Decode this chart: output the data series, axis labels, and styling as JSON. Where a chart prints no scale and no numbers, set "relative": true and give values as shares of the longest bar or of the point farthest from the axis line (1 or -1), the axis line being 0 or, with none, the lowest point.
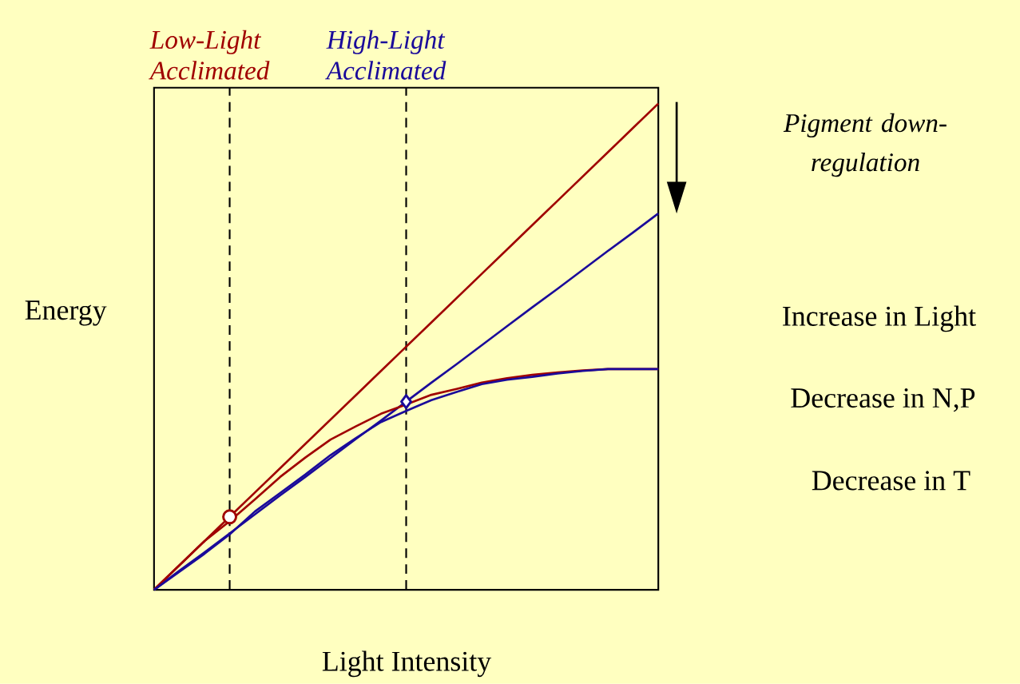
{
  "chart_data": {
    "type": "line",
    "relative": true,
    "xlabel": "Light Intensity",
    "ylabel": "Energy",
    "tick_labels": false,
    "marker": "none",
    "line_style": "solid",
    "categories": [
      null,
      null,
      null,
      null,
      null,
      null,
      null,
      null,
      null,
      null,
      null,
      null,
      null,
      null,
      null,
      null,
      null,
      null,
      null,
      null,
      null
    ],
    "series": [
      {
        "color": "#a00000",
        "values": [
          0,
          0.05,
          0.1,
          0.15,
          0.2,
          0.25,
          0.3,
          0.35,
          0.4,
          0.45,
          0.5,
          0.55,
          0.6,
          0.65,
          0.7,
          0.75,
          0.8,
          0.85,
          0.9,
          0.95,
          1
        ]
      },
      {
        "color": "#1a0a9a",
        "values": [
          0,
          0.039,
          0.077,
          0.116,
          0.155,
          0.194,
          0.232,
          0.271,
          0.31,
          0.348,
          0.387,
          0.426,
          0.464,
          0.503,
          0.542,
          0.581,
          0.619,
          0.658,
          0.697,
          0.735,
          0.774
        ]
      },
      {
        "color": "#a00000",
        "values": [
          0,
          0.05,
          0.1,
          0.141,
          0.186,
          0.232,
          0.272,
          0.309,
          0.336,
          0.362,
          0.381,
          0.401,
          0.413,
          0.426,
          0.435,
          0.442,
          0.447,
          0.451,
          0.454,
          0.454,
          0.454
        ]
      },
      {
        "color": "#1a0a9a",
        "values": [
          0,
          0.037,
          0.074,
          0.114,
          0.161,
          0.199,
          0.237,
          0.277,
          0.312,
          0.345,
          0.368,
          0.39,
          0.407,
          0.423,
          0.432,
          0.438,
          0.445,
          0.45,
          0.454,
          0.454,
          0.454
        ]
      },
      {
        "name": "Low-Light Acclimated",
        "color": "#a00000",
        "marker": "circle",
        "values": [
          null,
          null,
          null,
          0.15,
          null,
          null,
          null,
          null,
          null,
          null,
          null,
          null,
          null,
          null,
          null,
          null,
          null,
          null,
          null,
          null,
          null
        ]
      },
      {
        "name": "High-Light Acclimated",
        "color": "#1a0a9a",
        "marker": "diamond",
        "values": [
          null,
          null,
          null,
          null,
          null,
          null,
          null,
          null,
          null,
          null,
          0.387,
          null,
          null,
          null,
          null,
          null,
          null,
          null,
          null,
          null,
          null
        ]
      }
    ],
    "annotations": [
      "Pigment down-regulation",
      "Increase in Light",
      "Decrease in N,P",
      "Decrease in T"
    ]
  }
}
